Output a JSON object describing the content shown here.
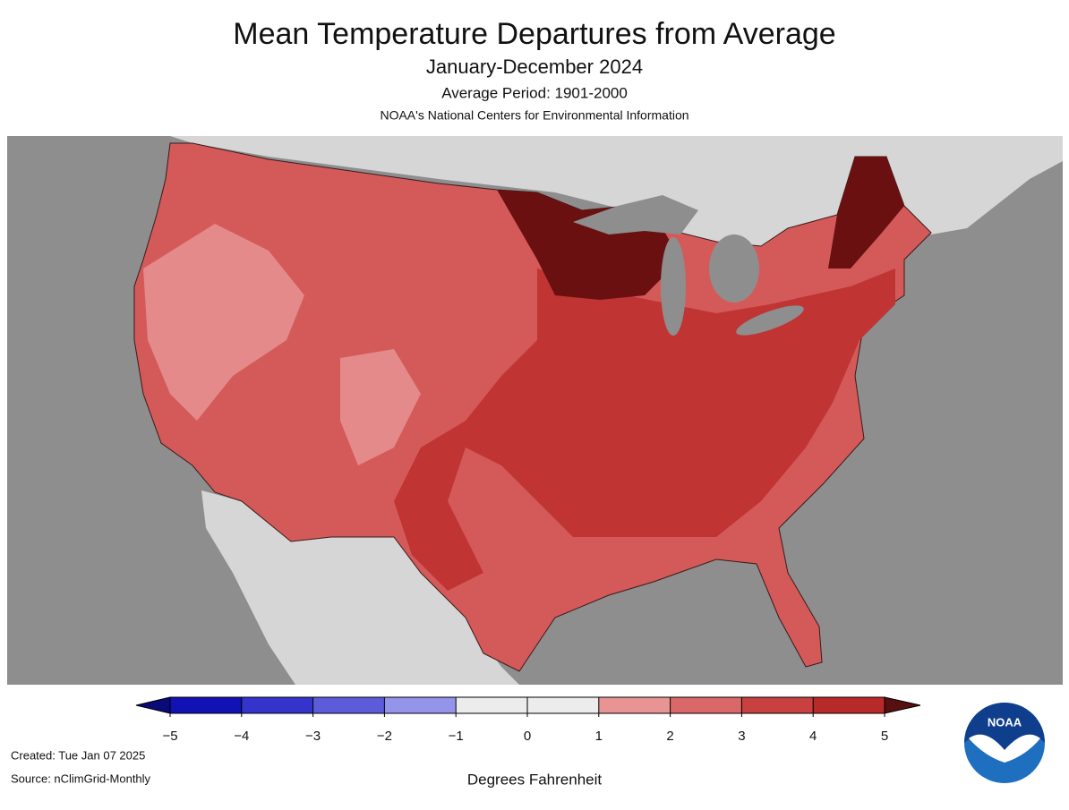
{
  "header": {
    "title": "Mean Temperature Departures from Average",
    "subtitle": "January-December 2024",
    "period": "Average Period: 1901-2000",
    "organization": "NOAA's National Centers for Environmental Information"
  },
  "colorbar": {
    "label": "Degrees Fahrenheit",
    "ticks": [
      {
        "value": -5,
        "label": "−5"
      },
      {
        "value": -4,
        "label": "−4"
      },
      {
        "value": -3,
        "label": "−3"
      },
      {
        "value": -2,
        "label": "−2"
      },
      {
        "value": -1,
        "label": "−1"
      },
      0,
      1,
      2,
      3,
      4,
      5
    ],
    "colors": [
      "#1212b4",
      "#3434cc",
      "#5c5cda",
      "#9494ea",
      "#ececec",
      "#ececec",
      "#e89494",
      "#da6868",
      "#c84040",
      "#b82a2a"
    ],
    "under_color": "#0a0a78",
    "over_color": "#561010"
  },
  "footer": {
    "created": "Created: Tue Jan 07 2025",
    "source": "Source: nClimGrid-Monthly"
  },
  "logo": {
    "text": "NOAA"
  }
}
